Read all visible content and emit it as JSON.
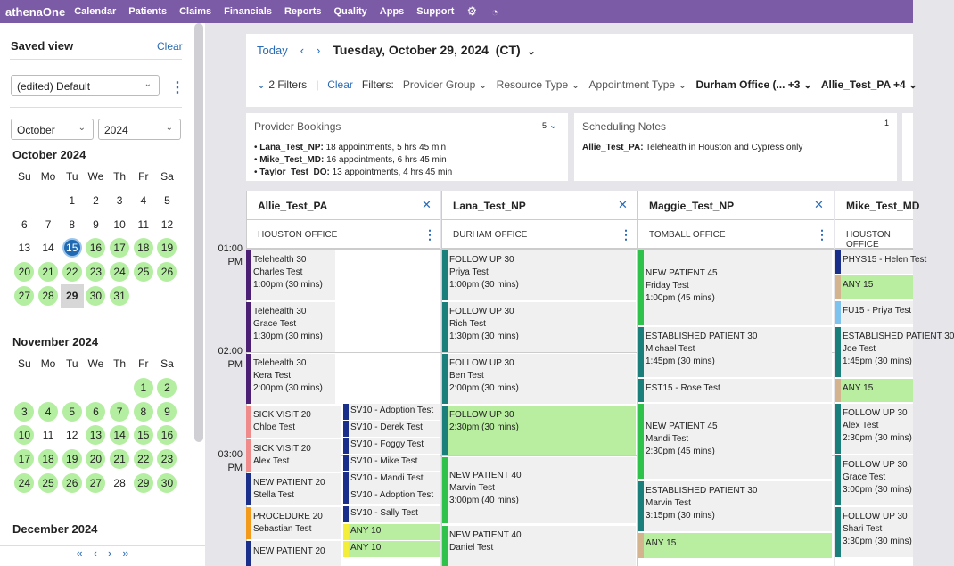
{
  "nav": {
    "logo": "athenaOne",
    "items": [
      "Calendar",
      "Patients",
      "Claims",
      "Financials",
      "Reports",
      "Quality",
      "Apps",
      "Support"
    ],
    "icons": [
      "gear-icon",
      "gauge-icon"
    ]
  },
  "sidebar": {
    "saved_view": "Saved view",
    "clear": "Clear",
    "view_value": "(edited) Default",
    "month_select": "October",
    "year_select": "2024",
    "weekdays": [
      "Su",
      "Mo",
      "Tu",
      "We",
      "Th",
      "Fr",
      "Sa"
    ],
    "oct": {
      "title": "October 2024"
    },
    "nov": {
      "title": "November 2024"
    },
    "dec": {
      "title": "December 2024"
    },
    "footer": [
      "«",
      "‹",
      "›",
      "»"
    ]
  },
  "toolbar": {
    "today": "Today",
    "date": "Tuesday, October 29, 2024",
    "tz": "(CT)",
    "filters_count": "2 Filters",
    "clear": "Clear",
    "filters_label": "Filters:",
    "provider_group": "Provider Group",
    "resource_type": "Resource Type",
    "appointment_type": "Appointment Type",
    "office": "Durham Office (... +3",
    "provider": "Allie_Test_PA +4"
  },
  "panels": {
    "bookings": {
      "title": "Provider Bookings",
      "count": "5",
      "items": [
        {
          "name": "Lana_Test_NP:",
          "text": " 18 appointments, 5 hrs 45 min"
        },
        {
          "name": "Mike_Test_MD:",
          "text": " 16 appointments, 6 hrs 45 min"
        },
        {
          "name": "Taylor_Test_DO:",
          "text": " 13 appointments, 4 hrs 45 min"
        }
      ]
    },
    "notes": {
      "title": "Scheduling Notes",
      "count": "1",
      "name": "Allie_Test_PA:",
      "text": " Telehealth in Houston and Cypress only"
    }
  },
  "times": [
    "01:00",
    "PM",
    "02:00",
    "PM",
    "03:00",
    "PM"
  ],
  "columns": [
    {
      "name": "Allie_Test_PA",
      "office": "HOUSTON OFFICE"
    },
    {
      "name": "Lana_Test_NP",
      "office": "DURHAM OFFICE"
    },
    {
      "name": "Maggie_Test_NP",
      "office": "TOMBALL OFFICE"
    },
    {
      "name": "Mike_Test_MD",
      "office": "HOUSTON OFFICE"
    }
  ],
  "appts": {
    "a1": [
      "Telehealth 30",
      "Charles Test",
      "1:00pm (30 mins)"
    ],
    "a2": [
      "Telehealth 30",
      "Grace Test",
      "1:30pm (30 mins)"
    ],
    "a3": [
      "Telehealth 30",
      "Kera Test",
      "2:00pm (30 mins)"
    ],
    "a4": [
      "SICK VISIT 20",
      "Chloe Test"
    ],
    "a5": [
      "SICK VISIT 20",
      "Alex Test"
    ],
    "a6": [
      "NEW PATIENT 20",
      "Stella Test"
    ],
    "a7": [
      "PROCEDURE 20",
      "Sebastian Test"
    ],
    "a8": [
      "NEW PATIENT 20"
    ],
    "a9": [
      "SV10 - Adoption Test"
    ],
    "a10": [
      "SV10 - Derek Test"
    ],
    "a11": [
      "SV10 - Foggy Test"
    ],
    "a12": [
      "SV10 - Mike Test"
    ],
    "a13": [
      "SV10 - Mandi Test"
    ],
    "a14": [
      "SV10 - Adoption Test"
    ],
    "a15": [
      "SV10 - Sally Test"
    ],
    "a16": [
      "ANY 10"
    ],
    "a17": [
      "ANY 10"
    ],
    "b1": [
      "FOLLOW UP 30",
      "Priya Test",
      "1:00pm (30 mins)"
    ],
    "b2": [
      "FOLLOW UP 30",
      "Rich Test",
      "1:30pm (30 mins)"
    ],
    "b3": [
      "FOLLOW UP 30",
      "Ben Test",
      "2:00pm (30 mins)"
    ],
    "b4": [
      "FOLLOW UP 30",
      "2:30pm (30 mins)"
    ],
    "b5": [
      "NEW PATIENT 40",
      "Marvin Test",
      "3:00pm (40 mins)"
    ],
    "b6": [
      "NEW PATIENT 40",
      "Daniel Test"
    ],
    "c1": [
      "NEW PATIENT 45",
      "Friday Test",
      "1:00pm (45 mins)"
    ],
    "c2": [
      "ESTABLISHED PATIENT 30",
      "Michael Test",
      "1:45pm (30 mins)"
    ],
    "c3": [
      "EST15 - Rose Test"
    ],
    "c4": [
      "NEW PATIENT 45",
      "Mandi Test",
      "2:30pm (45 mins)"
    ],
    "c5": [
      "ESTABLISHED PATIENT 30",
      "Marvin Test",
      "3:15pm (30 mins)"
    ],
    "c6": [
      "ANY 15"
    ],
    "d1": [
      "PHYS15 - Helen Test"
    ],
    "d2": [
      "ANY 15"
    ],
    "d3": [
      "FU15 - Priya Test"
    ],
    "d4": [
      "ESTABLISHED PATIENT 30",
      "Joe Test",
      "1:45pm (30 mins)"
    ],
    "d5": [
      "ANY 15"
    ],
    "d6": [
      "FOLLOW UP 30",
      "Alex Test",
      "2:30pm (30 mins)"
    ],
    "d7": [
      "FOLLOW UP 30",
      "Grace Test",
      "3:00pm (30 mins)"
    ],
    "d8": [
      "FOLLOW UP 30",
      "Shari Test",
      "3:30pm (30 mins)"
    ]
  },
  "colors": {
    "nav": "#7c5ba6",
    "link": "#2a6bb5",
    "green": "#b4eea1"
  }
}
